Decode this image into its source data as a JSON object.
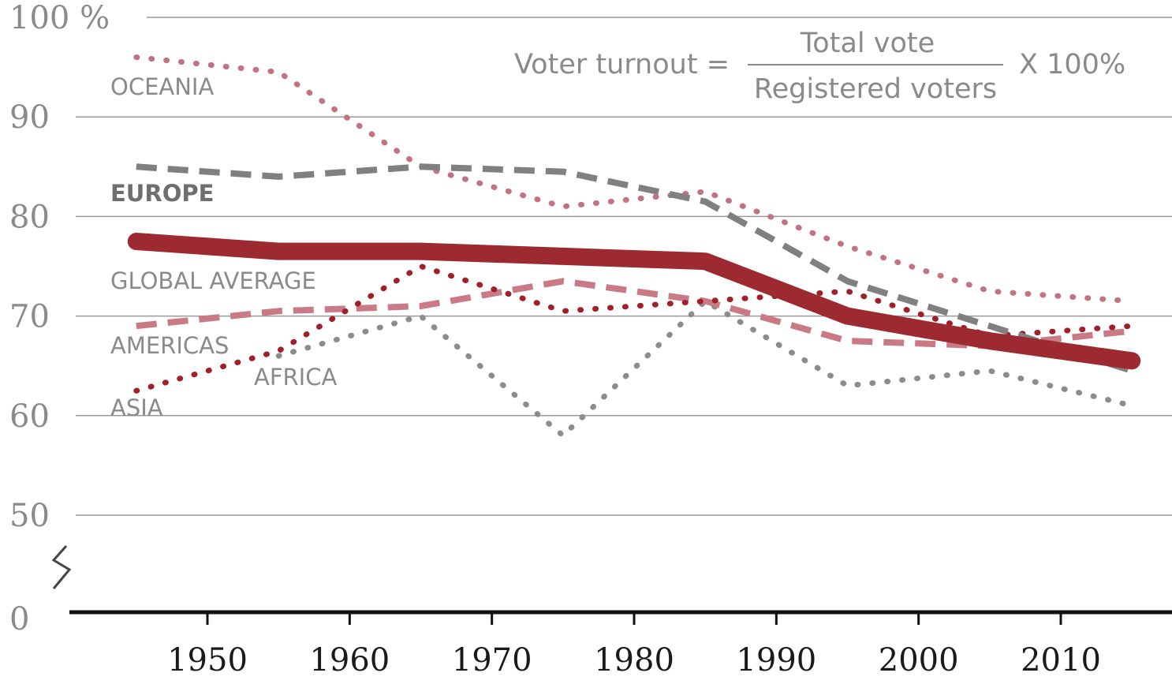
{
  "chart_data": {
    "type": "line",
    "title": "",
    "xlabel": "",
    "ylabel": "",
    "y_unit_label": "100 %",
    "ylim": [
      0,
      100
    ],
    "y_axis_break": [
      0,
      50
    ],
    "y_ticks": [
      "0",
      "50",
      "60",
      "70",
      "80",
      "90",
      "100 %"
    ],
    "y_tick_values": [
      0,
      50,
      60,
      70,
      80,
      90,
      100
    ],
    "x_ticks": [
      "1950",
      "1960",
      "1970",
      "1980",
      "1990",
      "2000",
      "2010"
    ],
    "x_tick_values": [
      1950,
      1960,
      1970,
      1980,
      1990,
      2000,
      2010
    ],
    "grid": true,
    "formula": {
      "left": "Voter turnout =",
      "numerator": "Total vote",
      "denominator": "Registered voters",
      "right": "X 100%"
    },
    "x": [
      1945,
      1955,
      1965,
      1975,
      1985,
      1995,
      2005,
      2015
    ],
    "series": [
      {
        "name": "OCEANIA",
        "values": [
          96,
          94.5,
          85,
          81,
          82.5,
          77,
          72.5,
          71.5
        ],
        "color": "#c2737f",
        "style": "dotted"
      },
      {
        "name": "EUROPE",
        "values": [
          85,
          84,
          85,
          84.5,
          81.5,
          73.5,
          69,
          64.5
        ],
        "color": "#808080",
        "style": "dashed"
      },
      {
        "name": "GLOBAL AVERAGE",
        "values": [
          77.5,
          76.5,
          76.5,
          76,
          75.5,
          70,
          67.5,
          65.5
        ],
        "color": "#9e2a31",
        "style": "solid-thick"
      },
      {
        "name": "AMERICAS",
        "values": [
          69,
          70.5,
          71,
          73.5,
          71.5,
          67.5,
          67,
          68.5
        ],
        "color": "#c97a85",
        "style": "dashed"
      },
      {
        "name": "ASIA",
        "values": [
          62.5,
          66.5,
          75,
          70.5,
          71.5,
          72.5,
          68,
          69
        ],
        "color": "#a01f29",
        "style": "dotted"
      },
      {
        "name": "AFRICA",
        "values": [
          null,
          66,
          70,
          58,
          71.5,
          63,
          64.5,
          61
        ],
        "color": "#8c8c8c",
        "style": "dotted"
      }
    ]
  }
}
